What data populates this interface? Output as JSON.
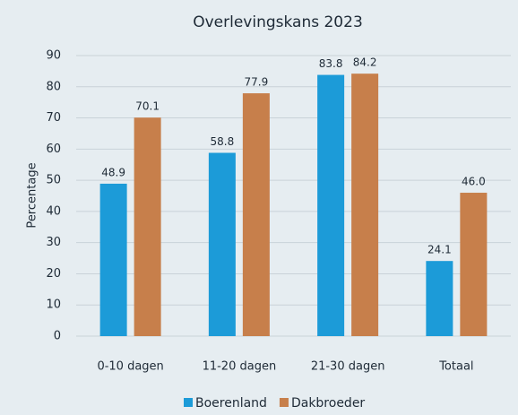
{
  "chart_data": {
    "type": "bar",
    "title": "Overlevingskans 2023",
    "y_label": "Percentage",
    "categories": [
      "0-10 dagen",
      "11-20 dagen",
      "21-30 dagen",
      "Totaal"
    ],
    "series": [
      {
        "name": "Boerenland",
        "color": "#1c9bd8",
        "values": [
          48.9,
          58.8,
          83.8,
          24.1
        ],
        "value_labels": [
          "48.9",
          "58.8",
          "83.8",
          "24.1"
        ]
      },
      {
        "name": "Dakbroeder",
        "color": "#c77f4b",
        "values": [
          70.1,
          77.9,
          84.2,
          46.0
        ],
        "value_labels": [
          "70.1",
          "77.9",
          "84.2",
          "46.0"
        ]
      }
    ],
    "ylim": [
      0,
      90
    ],
    "yticks": [
      0,
      10,
      20,
      30,
      40,
      50,
      60,
      70,
      80,
      90
    ],
    "grid": true,
    "legend": "bottom"
  }
}
